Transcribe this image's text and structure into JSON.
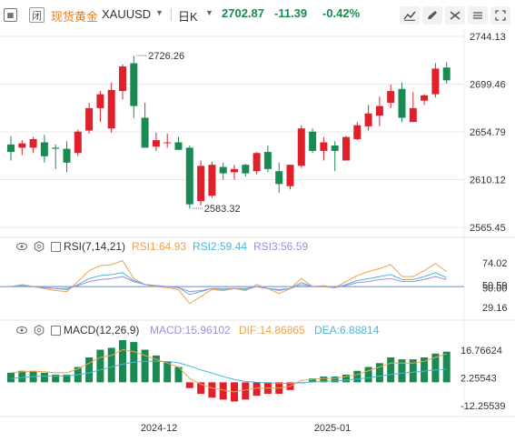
{
  "header": {
    "lock_label": "闭",
    "name": "现货黄金",
    "symbol": "XAUUSD",
    "period": "日K",
    "price": "2702.87",
    "change": "-11.39",
    "change_pct": "-0.42%"
  },
  "colors": {
    "up": "#e0212b",
    "down": "#1a8a52",
    "ma1": "#f0a14e",
    "ma2": "#4cb8d9",
    "ma3": "#a08ee0",
    "grid": "#e8e8e8",
    "brand": "#f07d1a"
  },
  "rsi_panel": {
    "title": "RSI(7,14,21)",
    "rsi1": "RSI1:64.93",
    "rsi2": "RSI2:59.44",
    "rsi3": "RSI3:56.59"
  },
  "macd_panel": {
    "title": "MACD(12,26,9)",
    "macd": "MACD:15.96102",
    "dif": "DIF:14.86865",
    "dea": "DEA:6.88814"
  },
  "chart_data": [
    {
      "type": "candlestick",
      "title": "现货黄金 XAUUSD 日K",
      "y_ticks": [
        "2744.13",
        "2699.46",
        "2654.79",
        "2610.12",
        "2565.45"
      ],
      "ylim": [
        2565.45,
        2744.13
      ],
      "x_tick_labels": [
        "2024-12",
        "2025-01"
      ],
      "annotations": [
        {
          "text": "2726.26",
          "candle": 11,
          "price": 2726.26
        },
        {
          "text": "2583.32",
          "candle": 16,
          "price": 2583.32
        }
      ],
      "ohlc": [
        [
          2643,
          2651,
          2628,
          2636
        ],
        [
          2640,
          2647,
          2633,
          2644
        ],
        [
          2640,
          2650,
          2635,
          2648
        ],
        [
          2645,
          2652,
          2626,
          2632
        ],
        [
          2640,
          2643,
          2620,
          2639
        ],
        [
          2639,
          2646,
          2617,
          2626
        ],
        [
          2635,
          2657,
          2632,
          2655
        ],
        [
          2656,
          2682,
          2653,
          2677
        ],
        [
          2677,
          2693,
          2664,
          2690
        ],
        [
          2658,
          2701,
          2654,
          2694
        ],
        [
          2693,
          2718,
          2685,
          2716
        ],
        [
          2719,
          2726,
          2668,
          2679
        ],
        [
          2668,
          2682,
          2640,
          2640
        ],
        [
          2641,
          2654,
          2637,
          2647
        ],
        [
          2645,
          2653,
          2640,
          2645
        ],
        [
          2645,
          2650,
          2638,
          2638
        ],
        [
          2640,
          2642,
          2583,
          2587
        ],
        [
          2590,
          2628,
          2586,
          2623
        ],
        [
          2595,
          2627,
          2593,
          2624
        ],
        [
          2622,
          2626,
          2610,
          2616
        ],
        [
          2617,
          2624,
          2610,
          2620
        ],
        [
          2624,
          2625,
          2613,
          2616
        ],
        [
          2618,
          2636,
          2615,
          2635
        ],
        [
          2636,
          2642,
          2617,
          2620
        ],
        [
          2618,
          2626,
          2598,
          2606
        ],
        [
          2604,
          2624,
          2601,
          2624
        ],
        [
          2623,
          2661,
          2621,
          2658
        ],
        [
          2655,
          2658,
          2635,
          2637
        ],
        [
          2637,
          2650,
          2628,
          2645
        ],
        [
          2642,
          2646,
          2618,
          2637
        ],
        [
          2628,
          2651,
          2628,
          2650
        ],
        [
          2648,
          2664,
          2647,
          2661
        ],
        [
          2660,
          2680,
          2656,
          2672
        ],
        [
          2670,
          2688,
          2660,
          2679
        ],
        [
          2682,
          2699,
          2677,
          2693
        ],
        [
          2695,
          2701,
          2664,
          2668
        ],
        [
          2664,
          2692,
          2664,
          2677
        ],
        [
          2684,
          2690,
          2680,
          2689
        ],
        [
          2690,
          2719,
          2687,
          2714
        ],
        [
          2715,
          2720,
          2700,
          2703
        ]
      ],
      "rsi": {
        "ticks": [
          "74.02",
          "50.59",
          "50.00",
          "29.16"
        ],
        "rsi1": [
          50,
          52,
          50,
          48,
          46,
          45,
          55,
          66,
          71,
          72,
          76,
          58,
          52,
          50,
          49,
          47,
          33,
          40,
          47,
          46,
          48,
          46,
          52,
          48,
          43,
          48,
          58,
          50,
          51,
          49,
          55,
          61,
          65,
          68,
          72,
          60,
          60,
          66,
          73,
          65
        ],
        "rsi2": [
          50,
          51,
          50,
          49,
          48,
          47,
          52,
          58,
          61,
          62,
          64,
          56,
          52,
          51,
          50,
          49,
          42,
          45,
          48,
          47,
          48,
          47,
          50,
          48,
          46,
          48,
          54,
          50,
          50,
          49,
          52,
          56,
          58,
          60,
          62,
          57,
          57,
          60,
          64,
          59
        ],
        "rsi3": [
          50,
          50,
          50,
          49,
          48,
          48,
          51,
          55,
          57,
          58,
          60,
          55,
          52,
          51,
          50,
          49,
          45,
          46,
          48,
          48,
          48,
          48,
          50,
          48,
          47,
          48,
          52,
          50,
          50,
          49,
          51,
          54,
          55,
          57,
          58,
          55,
          55,
          57,
          60,
          57
        ]
      },
      "macd": {
        "ticks": [
          "16.76624",
          "2.25543",
          "-12.25539"
        ],
        "hist": [
          5,
          6,
          6,
          5,
          4,
          4,
          8,
          13,
          17,
          18,
          22,
          21,
          17,
          14,
          11,
          8,
          -3,
          -6,
          -8,
          -9,
          -10,
          -9,
          -7,
          -6,
          -6,
          -4,
          0,
          2,
          3,
          3,
          4,
          6,
          8,
          10,
          13,
          12,
          12,
          13,
          15,
          16
        ],
        "dif": [
          5,
          5.5,
          5.8,
          5.5,
          5,
          5,
          7,
          10,
          13,
          14,
          17,
          16,
          14,
          12,
          10,
          8,
          2,
          -1,
          -3,
          -4,
          -5,
          -4,
          -3,
          -3,
          -3,
          -2,
          1,
          1.5,
          2,
          2,
          3,
          4,
          6,
          8,
          10,
          10,
          10,
          11,
          13,
          14.87
        ],
        "dea": [
          2,
          2.5,
          3,
          3.2,
          3.3,
          3.4,
          4,
          5,
          6.5,
          8,
          9.5,
          10.5,
          11,
          11,
          10.8,
          10.2,
          8.5,
          6.5,
          4.8,
          3,
          1.5,
          0.5,
          0,
          -0.3,
          -0.5,
          -0.6,
          -0.2,
          0.2,
          0.5,
          0.8,
          1.2,
          1.7,
          2.4,
          3.2,
          4.1,
          4.8,
          5.3,
          5.8,
          6.4,
          6.89
        ]
      }
    }
  ]
}
